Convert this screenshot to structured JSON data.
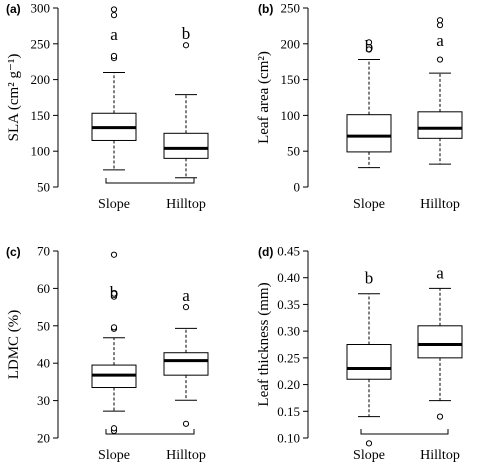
{
  "chart_data": [
    {
      "type": "boxplot",
      "panel_label": "(a)",
      "ylabel": "SLA (cm² g⁻¹)",
      "ylim": [
        50,
        300
      ],
      "yticks": [
        50,
        100,
        150,
        200,
        250,
        300
      ],
      "categories": [
        "Slope",
        "Hilltop"
      ],
      "boxes": [
        {
          "category": "Slope",
          "whisker_low": 74,
          "q1": 115,
          "median": 133,
          "q3": 153,
          "whisker_high": 210,
          "outliers": [
            230,
            233,
            290,
            298
          ]
        },
        {
          "category": "Hilltop",
          "whisker_low": 63,
          "q1": 90,
          "median": 104,
          "q3": 125,
          "whisker_high": 179,
          "outliers": [
            248
          ]
        }
      ],
      "letters": [
        "a",
        "b"
      ],
      "bracket": true
    },
    {
      "type": "boxplot",
      "panel_label": "(b)",
      "ylabel": "Leaf area (cm²)",
      "ylim": [
        0,
        250
      ],
      "yticks": [
        0,
        50,
        100,
        150,
        200,
        250
      ],
      "categories": [
        "Slope",
        "Hilltop"
      ],
      "boxes": [
        {
          "category": "Slope",
          "whisker_low": 27,
          "q1": 49,
          "median": 71,
          "q3": 101,
          "whisker_high": 178,
          "outliers": [
            192,
            202
          ]
        },
        {
          "category": "Hilltop",
          "whisker_low": 32,
          "q1": 68,
          "median": 82,
          "q3": 105,
          "whisker_high": 159,
          "outliers": [
            178,
            226,
            233
          ]
        }
      ],
      "letters": [
        "b",
        "a"
      ],
      "bracket": false
    },
    {
      "type": "boxplot",
      "panel_label": "(c)",
      "ylabel": "LDMC (%)",
      "ylim": [
        20,
        70
      ],
      "yticks": [
        20,
        30,
        40,
        50,
        60,
        70
      ],
      "categories": [
        "Slope",
        "Hilltop"
      ],
      "boxes": [
        {
          "category": "Slope",
          "whisker_low": 27.2,
          "q1": 33.5,
          "median": 36.8,
          "q3": 39.5,
          "whisker_high": 46.8,
          "outliers": [
            21.9,
            22.6,
            49.2,
            49.6,
            57.8,
            58.6,
            69
          ]
        },
        {
          "category": "Hilltop",
          "whisker_low": 30.1,
          "q1": 36.8,
          "median": 40.7,
          "q3": 42.8,
          "whisker_high": 49.3,
          "outliers": [
            23.8,
            55
          ]
        }
      ],
      "letters": [
        "b",
        "a"
      ],
      "bracket": true
    },
    {
      "type": "boxplot",
      "panel_label": "(d)",
      "ylabel": "Leaf thickness (mm)",
      "ylim": [
        0.1,
        0.45
      ],
      "yticks": [
        0.1,
        0.15,
        0.2,
        0.25,
        0.3,
        0.35,
        0.4,
        0.45
      ],
      "yticklabels": [
        "0.10",
        "0.15",
        "0.20",
        "0.25",
        "0.30",
        "0.35",
        "0.40",
        "0.45"
      ],
      "categories": [
        "Slope",
        "Hilltop"
      ],
      "boxes": [
        {
          "category": "Slope",
          "whisker_low": 0.14,
          "q1": 0.21,
          "median": 0.23,
          "q3": 0.275,
          "whisker_high": 0.37,
          "outliers": [
            0.09
          ]
        },
        {
          "category": "Hilltop",
          "whisker_low": 0.17,
          "q1": 0.25,
          "median": 0.275,
          "q3": 0.31,
          "whisker_high": 0.38,
          "outliers": [
            0.14
          ]
        }
      ],
      "letters": [
        "b",
        "a"
      ],
      "bracket": true
    }
  ]
}
